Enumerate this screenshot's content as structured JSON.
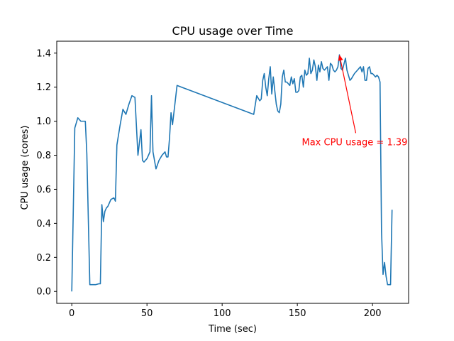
{
  "chart_data": {
    "type": "line",
    "title": "CPU usage over Time",
    "xlabel": "Time (sec)",
    "ylabel": "CPU usage (cores)",
    "xlim": [
      -10,
      224
    ],
    "ylim": [
      -0.07,
      1.47
    ],
    "xticks": [
      0,
      50,
      100,
      150,
      200
    ],
    "xtick_labels": [
      "0",
      "50",
      "100",
      "150",
      "200"
    ],
    "yticks": [
      0.0,
      0.2,
      0.4,
      0.6,
      0.8,
      1.0,
      1.2,
      1.4
    ],
    "ytick_labels": [
      "0.0",
      "0.2",
      "0.4",
      "0.6",
      "0.8",
      "1.0",
      "1.2",
      "1.4"
    ],
    "grid": false,
    "line_color": "#1f77b4",
    "series": [
      {
        "points": [
          [
            0,
            0.0
          ],
          [
            2,
            0.96
          ],
          [
            4,
            1.02
          ],
          [
            6,
            1.0
          ],
          [
            9,
            1.0
          ],
          [
            10,
            0.81
          ],
          [
            12,
            0.04
          ],
          [
            14,
            0.04
          ],
          [
            16,
            0.04
          ],
          [
            18,
            0.045
          ],
          [
            19,
            0.045
          ],
          [
            20,
            0.51
          ],
          [
            21,
            0.41
          ],
          [
            22,
            0.47
          ],
          [
            23,
            0.49
          ],
          [
            24,
            0.5
          ],
          [
            26,
            0.54
          ],
          [
            28,
            0.55
          ],
          [
            29,
            0.53
          ],
          [
            30,
            0.86
          ],
          [
            32,
            0.97
          ],
          [
            34,
            1.07
          ],
          [
            36,
            1.04
          ],
          [
            38,
            1.1
          ],
          [
            40,
            1.15
          ],
          [
            42,
            1.14
          ],
          [
            44,
            0.8
          ],
          [
            46,
            0.95
          ],
          [
            47,
            0.77
          ],
          [
            48,
            0.76
          ],
          [
            50,
            0.78
          ],
          [
            52,
            0.82
          ],
          [
            53,
            1.15
          ],
          [
            54,
            0.82
          ],
          [
            56,
            0.72
          ],
          [
            58,
            0.77
          ],
          [
            60,
            0.8
          ],
          [
            62,
            0.82
          ],
          [
            63,
            0.79
          ],
          [
            64,
            0.79
          ],
          [
            65,
            0.9
          ],
          [
            66,
            1.05
          ],
          [
            67,
            0.98
          ],
          [
            70,
            1.21
          ],
          [
            121,
            1.04
          ],
          [
            123,
            1.15
          ],
          [
            125,
            1.12
          ],
          [
            126,
            1.13
          ],
          [
            127,
            1.24
          ],
          [
            128,
            1.28
          ],
          [
            129,
            1.2
          ],
          [
            130,
            1.15
          ],
          [
            131,
            1.25
          ],
          [
            132,
            1.32
          ],
          [
            133,
            1.16
          ],
          [
            134,
            1.26
          ],
          [
            135,
            1.18
          ],
          [
            136,
            1.1
          ],
          [
            137,
            1.06
          ],
          [
            138,
            1.05
          ],
          [
            139,
            1.1
          ],
          [
            140,
            1.26
          ],
          [
            141,
            1.3
          ],
          [
            142,
            1.23
          ],
          [
            143,
            1.23
          ],
          [
            144,
            1.22
          ],
          [
            145,
            1.21
          ],
          [
            146,
            1.26
          ],
          [
            147,
            1.22
          ],
          [
            148,
            1.25
          ],
          [
            149,
            1.17
          ],
          [
            150,
            1.17
          ],
          [
            151,
            1.18
          ],
          [
            152,
            1.26
          ],
          [
            153,
            1.27
          ],
          [
            154,
            1.2
          ],
          [
            155,
            1.3
          ],
          [
            156,
            1.27
          ],
          [
            157,
            1.28
          ],
          [
            158,
            1.37
          ],
          [
            159,
            1.28
          ],
          [
            160,
            1.3
          ],
          [
            161,
            1.36
          ],
          [
            162,
            1.32
          ],
          [
            163,
            1.24
          ],
          [
            164,
            1.33
          ],
          [
            165,
            1.29
          ],
          [
            166,
            1.35
          ],
          [
            167,
            1.31
          ],
          [
            168,
            1.3
          ],
          [
            170,
            1.32
          ],
          [
            171,
            1.24
          ],
          [
            172,
            1.34
          ],
          [
            173,
            1.33
          ],
          [
            174,
            1.3
          ],
          [
            175,
            1.29
          ],
          [
            176,
            1.3
          ],
          [
            177,
            1.32
          ],
          [
            178,
            1.39
          ],
          [
            179,
            1.31
          ],
          [
            180,
            1.3
          ],
          [
            182,
            1.37
          ],
          [
            183,
            1.3
          ],
          [
            184,
            1.27
          ],
          [
            185,
            1.24
          ],
          [
            186,
            1.25
          ],
          [
            188,
            1.28
          ],
          [
            190,
            1.3
          ],
          [
            191,
            1.31
          ],
          [
            192,
            1.32
          ],
          [
            193,
            1.29
          ],
          [
            194,
            1.32
          ],
          [
            195,
            1.24
          ],
          [
            196,
            1.24
          ],
          [
            197,
            1.31
          ],
          [
            198,
            1.32
          ],
          [
            199,
            1.28
          ],
          [
            200,
            1.28
          ],
          [
            202,
            1.26
          ],
          [
            203,
            1.27
          ],
          [
            204,
            1.26
          ],
          [
            205,
            1.23
          ],
          [
            206,
            0.35
          ],
          [
            207,
            0.1
          ],
          [
            208,
            0.17
          ],
          [
            209,
            0.09
          ],
          [
            210,
            0.04
          ],
          [
            211,
            0.04
          ],
          [
            212,
            0.04
          ],
          [
            213,
            0.48
          ]
        ]
      }
    ],
    "annotation": {
      "text": "Max CPU usage = 1.39",
      "point": [
        178,
        1.39
      ],
      "text_position": [
        153,
        0.88
      ],
      "color": "#ff0000"
    }
  }
}
